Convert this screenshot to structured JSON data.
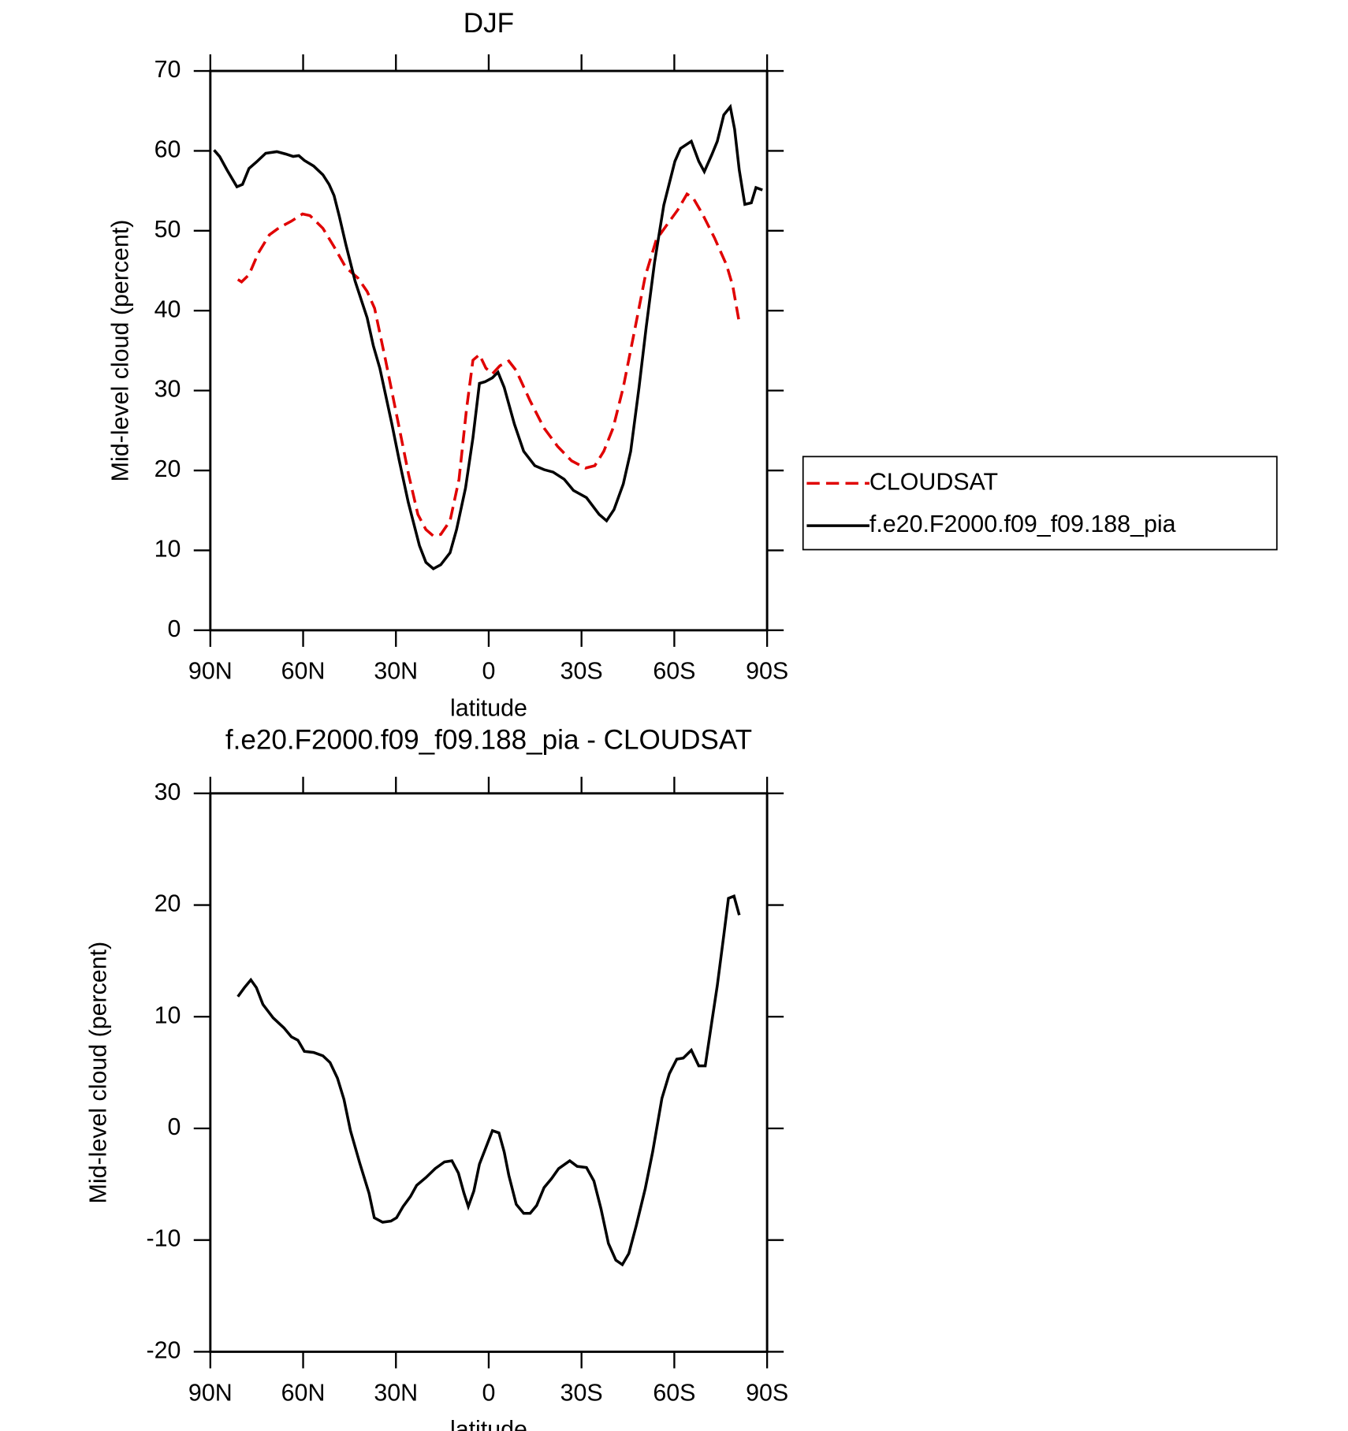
{
  "chart_data": [
    {
      "type": "line",
      "title": "DJF",
      "xlabel": "latitude",
      "ylabel": "Mid-level cloud (percent)",
      "xlim": [
        90,
        -90
      ],
      "xticks": [
        {
          "value": 90,
          "label": "90N"
        },
        {
          "value": 60,
          "label": "60N"
        },
        {
          "value": 30,
          "label": "30N"
        },
        0,
        {
          "value": -30,
          "label": "30S"
        },
        {
          "value": -60,
          "label": "60S"
        },
        {
          "value": -90,
          "label": "90S"
        }
      ],
      "ylim": [
        0,
        70
      ],
      "yticks": [
        0,
        10,
        20,
        30,
        40,
        50,
        60,
        70
      ],
      "legend": "right",
      "series": [
        {
          "name": "CLOUDSAT",
          "color": "#e00000",
          "dashed": true,
          "x": [
            81.1,
            79.9,
            77.5,
            74.5,
            70.9,
            67.7,
            63.8,
            60.2,
            57.8,
            53.6,
            50,
            46.2,
            42.3,
            39.3,
            36.9,
            33.4,
            29.8,
            25.9,
            22.9,
            20.3,
            17.9,
            15.5,
            12.5,
            9.6,
            7.2,
            5.1,
            3,
            0.9,
            -1.2,
            -3.6,
            -6.5,
            -8.9,
            -13.4,
            -17.9,
            -22.3,
            -26.8,
            -31.3,
            -34.3,
            -37.2,
            -40.2,
            -43.5,
            -47.1,
            -50.6,
            -54.2,
            -58.1,
            -61.1,
            -64.1,
            -66.1,
            -69.1,
            -73,
            -76.9,
            -78.9,
            -81
          ],
          "values": [
            43.9,
            43.6,
            44.5,
            47.2,
            49.5,
            50.4,
            51.2,
            52.1,
            51.9,
            50.3,
            48.0,
            45.4,
            44.1,
            42.4,
            40.3,
            33.9,
            27.0,
            19.5,
            14.5,
            12.6,
            11.8,
            12.0,
            13.7,
            18.9,
            27.6,
            33.8,
            34.5,
            32.8,
            32.1,
            33.1,
            33.7,
            32.5,
            28.7,
            25.3,
            23.0,
            21.2,
            20.3,
            20.6,
            22.4,
            25.3,
            30.4,
            37.4,
            44.3,
            48.9,
            51.0,
            52.6,
            54.6,
            54.1,
            52.1,
            49.1,
            45.7,
            43.1,
            38.5
          ]
        },
        {
          "name": "f.e20.F2000.f09_f09.188_pia",
          "color": "#000000",
          "dashed": false,
          "x": [
            88.8,
            87,
            84.6,
            81.4,
            79.6,
            77.5,
            75.1,
            72.1,
            68.5,
            65.6,
            63.2,
            61.4,
            59.6,
            56.6,
            53.6,
            51.6,
            50,
            48.3,
            46.2,
            43.2,
            39.3,
            37.3,
            35.2,
            31.3,
            28.9,
            26,
            22.4,
            20.3,
            17.9,
            15.5,
            12.5,
            10.4,
            7.5,
            5.1,
            3,
            1.2,
            -1.2,
            -3,
            -5,
            -8.3,
            -11.3,
            -14.9,
            -17.9,
            -20.8,
            -24.4,
            -27.4,
            -31.6,
            -35.7,
            -38.1,
            -40.5,
            -43.5,
            -45.9,
            -48.6,
            -50.9,
            -53.6,
            -56.6,
            -60.2,
            -62,
            -65.5,
            -67.9,
            -69.7,
            -72.1,
            -73.9,
            -76,
            -78.1,
            -79.5,
            -81,
            -82.8,
            -84.9,
            -86.4,
            -88.5
          ],
          "values": [
            60.1,
            59.3,
            57.6,
            55.5,
            55.8,
            57.8,
            58.6,
            59.7,
            59.9,
            59.6,
            59.3,
            59.4,
            58.8,
            58.1,
            57.0,
            55.8,
            54.4,
            51.8,
            48.3,
            43.7,
            39.1,
            35.6,
            32.8,
            25.8,
            21.2,
            16.0,
            10.6,
            8.5,
            7.7,
            8.2,
            9.7,
            12.6,
            17.8,
            24.1,
            30.9,
            31.1,
            31.6,
            32.3,
            30.4,
            25.8,
            22.4,
            20.6,
            20.1,
            19.8,
            18.9,
            17.5,
            16.6,
            14.5,
            13.7,
            15.1,
            18.3,
            22.4,
            30.4,
            37.9,
            46.0,
            53.2,
            58.7,
            60.3,
            61.2,
            58.7,
            57.4,
            59.5,
            61.2,
            64.5,
            65.5,
            62.7,
            57.6,
            53.3,
            53.5,
            55.4,
            55.1
          ]
        }
      ]
    },
    {
      "type": "line",
      "title": "f.e20.F2000.f09_f09.188_pia - CLOUDSAT",
      "xlabel": "latitude",
      "ylabel": "Mid-level cloud (percent)",
      "xlim": [
        90,
        -90
      ],
      "xticks": [
        {
          "value": 90,
          "label": "90N"
        },
        {
          "value": 60,
          "label": "60N"
        },
        {
          "value": 30,
          "label": "30N"
        },
        0,
        {
          "value": -30,
          "label": "30S"
        },
        {
          "value": -60,
          "label": "60S"
        },
        {
          "value": -90,
          "label": "90S"
        }
      ],
      "ylim": [
        -20,
        30
      ],
      "yticks": [
        -20,
        -10,
        0,
        10,
        20,
        30
      ],
      "series": [
        {
          "color": "#000000",
          "dashed": false,
          "x": [
            81.1,
            79,
            76.9,
            75.1,
            73,
            69.7,
            66.2,
            63.8,
            61.7,
            59.6,
            56.6,
            53.6,
            51.3,
            48.9,
            46.8,
            44.7,
            41.7,
            38.7,
            37,
            34.3,
            31.6,
            29.8,
            27.7,
            25.3,
            23.3,
            20.3,
            17.3,
            14.3,
            11.9,
            9.8,
            8,
            6.6,
            4.8,
            3,
            0.9,
            -1.2,
            -3.3,
            -5,
            -6.5,
            -8.9,
            -11.3,
            -13.4,
            -15.5,
            -17.9,
            -20.3,
            -22.6,
            -26.2,
            -28.6,
            -31.6,
            -34,
            -36.3,
            -38.7,
            -41.1,
            -43.2,
            -45.3,
            -47.7,
            -50.6,
            -53,
            -56,
            -58.4,
            -60.8,
            -62.9,
            -65.5,
            -67.9,
            -70,
            -72.1,
            -73.9,
            -76,
            -77.5,
            -79.3,
            -81
          ],
          "values": [
            11.8,
            12.6,
            13.3,
            12.6,
            11.1,
            9.9,
            9.0,
            8.2,
            7.9,
            6.9,
            6.8,
            6.5,
            5.9,
            4.5,
            2.6,
            -0.2,
            -3.1,
            -5.8,
            -8.0,
            -8.4,
            -8.3,
            -8.0,
            -7.0,
            -6.1,
            -5.1,
            -4.4,
            -3.6,
            -3.0,
            -2.9,
            -4.0,
            -5.8,
            -7.0,
            -5.6,
            -3.2,
            -1.7,
            -0.2,
            -0.4,
            -2.1,
            -4.2,
            -6.8,
            -7.6,
            -7.6,
            -6.9,
            -5.3,
            -4.5,
            -3.6,
            -2.9,
            -3.4,
            -3.5,
            -4.7,
            -7.2,
            -10.3,
            -11.8,
            -12.2,
            -11.2,
            -8.7,
            -5.4,
            -2.1,
            2.7,
            4.9,
            6.2,
            6.3,
            7.0,
            5.6,
            5.6,
            9.5,
            12.8,
            17.3,
            20.6,
            20.8,
            19.1
          ]
        }
      ]
    }
  ]
}
